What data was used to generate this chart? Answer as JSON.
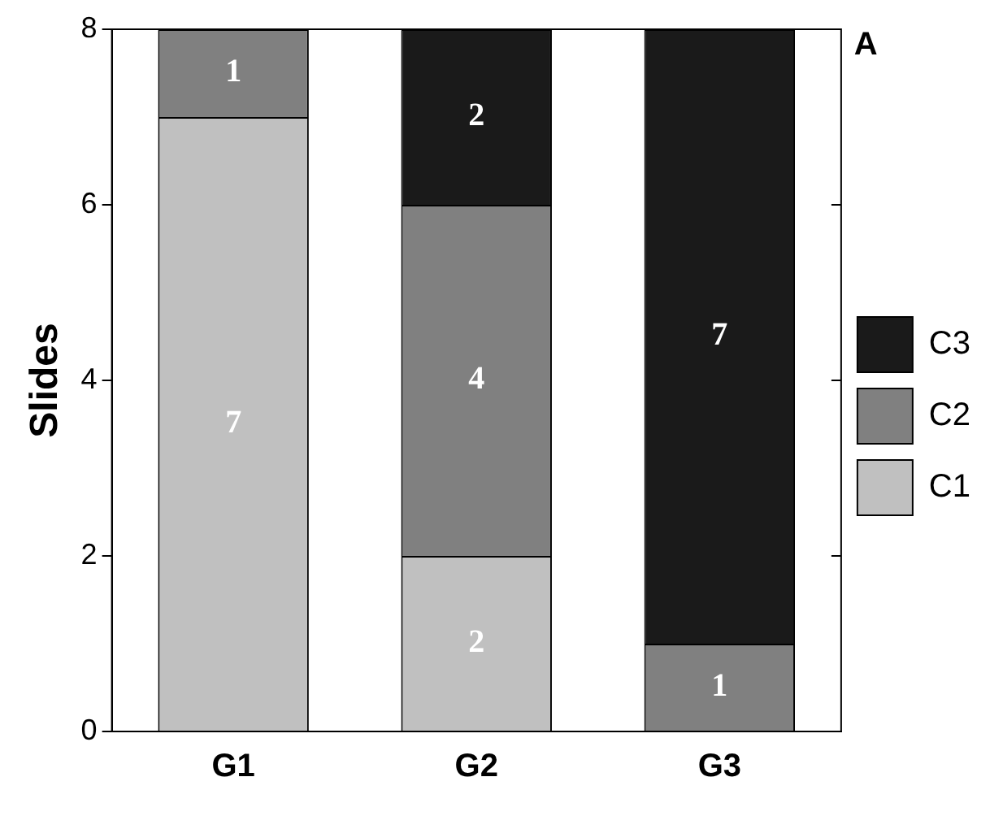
{
  "chart_data": {
    "type": "bar",
    "stacked": true,
    "ylabel": "Slides",
    "categories": [
      "G1",
      "G2",
      "G3"
    ],
    "series": [
      {
        "name": "C1",
        "color": "#c0c0c0",
        "values": [
          7,
          2,
          0
        ],
        "value_labels": [
          "7",
          "2",
          null
        ]
      },
      {
        "name": "C2",
        "color": "#808080",
        "values": [
          1,
          4,
          1
        ],
        "value_labels": [
          "1",
          "4",
          "1"
        ]
      },
      {
        "name": "C3",
        "color": "#1a1a1a",
        "values": [
          0,
          2,
          7
        ],
        "value_labels": [
          null,
          "2",
          "7"
        ]
      }
    ],
    "ylim": [
      0,
      8
    ],
    "yticks": [
      0,
      2,
      4,
      6,
      8
    ],
    "grid": false,
    "legend": "right",
    "annotations": [
      "A"
    ]
  }
}
